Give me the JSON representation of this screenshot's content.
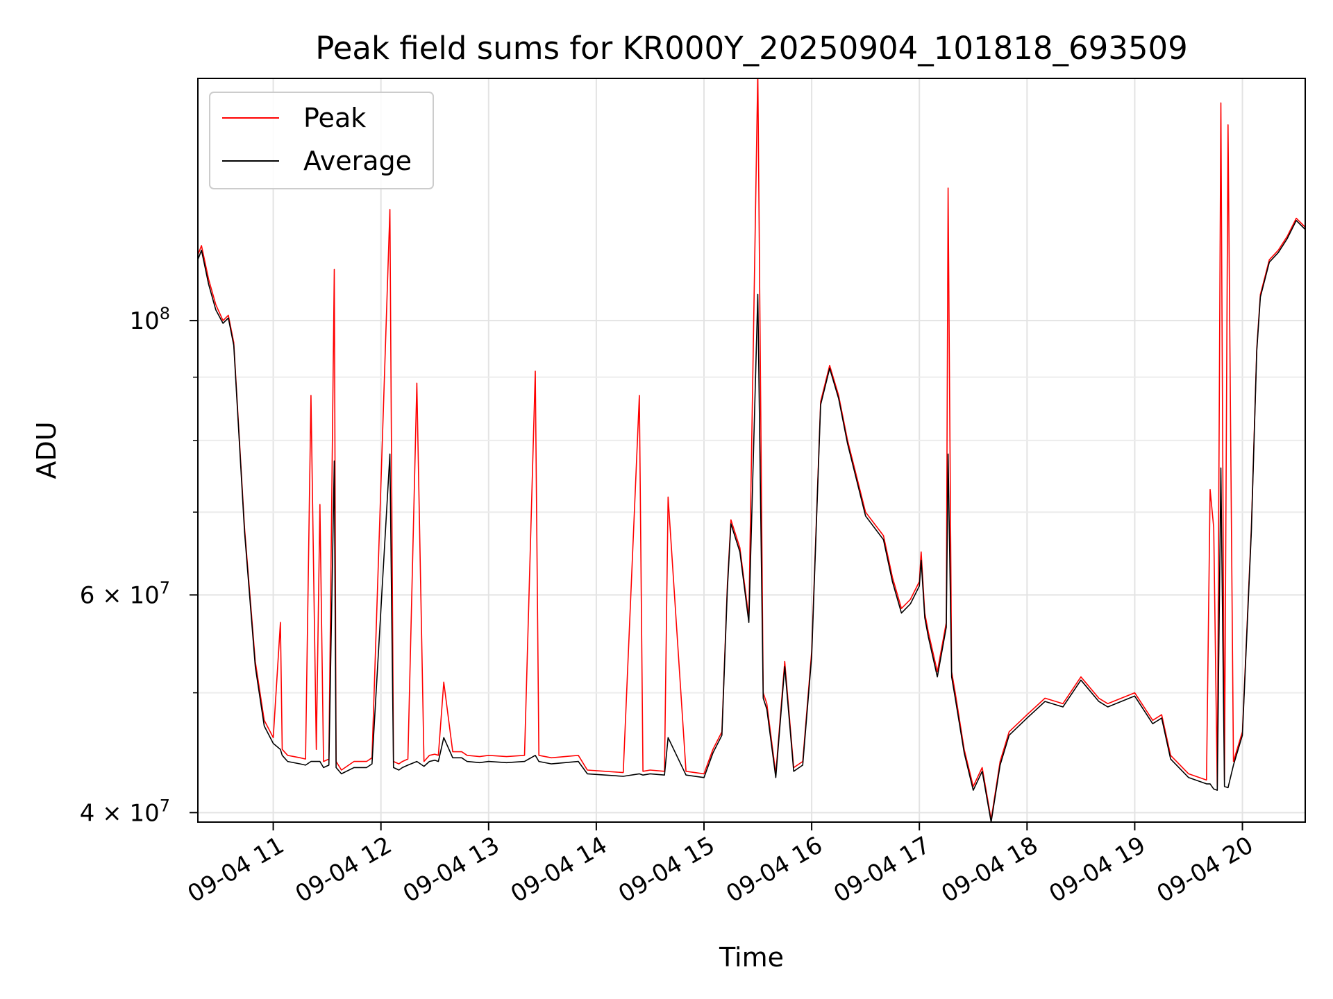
{
  "chart_data": {
    "type": "line",
    "title": "Peak field sums for KR000Y_20250904_101818_693509",
    "xlabel": "Time",
    "ylabel": "ADU",
    "yscale": "log",
    "xlim": [
      "2025-09-04 10:18",
      "2025-09-04 20:35"
    ],
    "ylim": [
      39300000,
      157000000
    ],
    "x_ticks": [
      "09-04 11",
      "09-04 12",
      "09-04 13",
      "09-04 14",
      "09-04 15",
      "09-04 16",
      "09-04 17",
      "09-04 18",
      "09-04 19",
      "09-04 20"
    ],
    "y_ticks": [
      {
        "value": 40000000,
        "label": "4 × 10",
        "exp": "7"
      },
      {
        "value": 60000000,
        "label": "6 × 10",
        "exp": "7"
      },
      {
        "value": 100000000,
        "label": "10",
        "exp": "8"
      }
    ],
    "grid": true,
    "legend_position": "top-left",
    "series": [
      {
        "name": "Peak",
        "color": "#ff0000",
        "x": [
          "10:18",
          "10:20",
          "10:24",
          "10:28",
          "10:32",
          "10:35",
          "10:38",
          "10:44",
          "10:50",
          "10:55",
          "11:00",
          "11:04",
          "11:05",
          "11:08",
          "11:15",
          "11:18",
          "11:21",
          "11:24",
          "11:26",
          "11:28",
          "11:31",
          "11:34",
          "11:35",
          "11:38",
          "11:45",
          "11:52",
          "11:55",
          "12:05",
          "12:07",
          "12:10",
          "12:12",
          "12:15",
          "12:20",
          "12:24",
          "12:27",
          "12:30",
          "12:32",
          "12:35",
          "12:40",
          "12:45",
          "12:48",
          "12:55",
          "13:00",
          "13:10",
          "13:20",
          "13:26",
          "13:28",
          "13:35",
          "13:50",
          "13:55",
          "14:05",
          "14:15",
          "14:24",
          "14:26",
          "14:30",
          "14:38",
          "14:40",
          "14:50",
          "15:00",
          "15:05",
          "15:10",
          "15:13",
          "15:15",
          "15:20",
          "15:25",
          "15:30",
          "15:33",
          "15:35",
          "15:40",
          "15:45",
          "15:50",
          "15:55",
          "16:00",
          "16:05",
          "16:10",
          "16:15",
          "16:20",
          "16:30",
          "16:40",
          "16:45",
          "16:50",
          "16:55",
          "17:00",
          "17:01",
          "17:03",
          "17:05",
          "17:10",
          "17:15",
          "17:16",
          "17:18",
          "17:20",
          "17:25",
          "17:30",
          "17:35",
          "17:40",
          "17:45",
          "17:50",
          "18:00",
          "18:10",
          "18:20",
          "18:30",
          "18:40",
          "18:45",
          "19:00",
          "19:10",
          "19:15",
          "19:20",
          "19:30",
          "19:40",
          "19:42",
          "19:44",
          "19:46",
          "19:48",
          "19:50",
          "19:52",
          "19:55",
          "20:00",
          "20:05",
          "20:08",
          "20:10",
          "20:15",
          "20:20",
          "20:25",
          "20:30",
          "20:35"
        ],
        "y": [
          113000000,
          115000000,
          108000000,
          103000000,
          100000000,
          101000000,
          96000000,
          68000000,
          53000000,
          47500000,
          46000000,
          57000000,
          45000000,
          44500000,
          44300000,
          44200000,
          87000000,
          45000000,
          71000000,
          44000000,
          44200000,
          110000000,
          44000000,
          43300000,
          44000000,
          44000000,
          44300000,
          123000000,
          44000000,
          43800000,
          44000000,
          44200000,
          89000000,
          44000000,
          44500000,
          44600000,
          44500000,
          51000000,
          44800000,
          44800000,
          44500000,
          44400000,
          44500000,
          44400000,
          44500000,
          91000000,
          44500000,
          44300000,
          44500000,
          43300000,
          43200000,
          43100000,
          87000000,
          43200000,
          43300000,
          43200000,
          72000000,
          43200000,
          43000000,
          45000000,
          46500000,
          61000000,
          69000000,
          65500000,
          57500000,
          159000000,
          50000000,
          49000000,
          43000000,
          53000000,
          43500000,
          44000000,
          54000000,
          86000000,
          92000000,
          87000000,
          80000000,
          70000000,
          67000000,
          62000000,
          58500000,
          59500000,
          61500000,
          65000000,
          58000000,
          56000000,
          52000000,
          57000000,
          128000000,
          52000000,
          50000000,
          45000000,
          42000000,
          43500000,
          39500000,
          44000000,
          46500000,
          48000000,
          49500000,
          49000000,
          51500000,
          49500000,
          49000000,
          50000000,
          47500000,
          48000000,
          44500000,
          43000000,
          42500000,
          73000000,
          68000000,
          42000000,
          150000000,
          42500000,
          144000000,
          44000000,
          46500000,
          68000000,
          95000000,
          105000000,
          112000000,
          114000000,
          117000000,
          121000000,
          119000000
        ]
      },
      {
        "name": "Average",
        "color": "#000000",
        "x": [
          "10:18",
          "10:20",
          "10:24",
          "10:28",
          "10:32",
          "10:35",
          "10:38",
          "10:44",
          "10:50",
          "10:55",
          "11:00",
          "11:04",
          "11:05",
          "11:08",
          "11:15",
          "11:18",
          "11:21",
          "11:24",
          "11:26",
          "11:28",
          "11:31",
          "11:34",
          "11:35",
          "11:38",
          "11:45",
          "11:52",
          "11:55",
          "12:05",
          "12:07",
          "12:10",
          "12:12",
          "12:15",
          "12:20",
          "12:24",
          "12:27",
          "12:30",
          "12:32",
          "12:35",
          "12:40",
          "12:45",
          "12:48",
          "12:55",
          "13:00",
          "13:10",
          "13:20",
          "13:26",
          "13:28",
          "13:35",
          "13:50",
          "13:55",
          "14:05",
          "14:15",
          "14:24",
          "14:26",
          "14:30",
          "14:38",
          "14:40",
          "14:50",
          "15:00",
          "15:05",
          "15:10",
          "15:13",
          "15:15",
          "15:20",
          "15:25",
          "15:30",
          "15:33",
          "15:35",
          "15:40",
          "15:45",
          "15:50",
          "15:55",
          "16:00",
          "16:05",
          "16:10",
          "16:15",
          "16:20",
          "16:30",
          "16:40",
          "16:45",
          "16:50",
          "16:55",
          "17:00",
          "17:01",
          "17:03",
          "17:05",
          "17:10",
          "17:15",
          "17:16",
          "17:18",
          "17:20",
          "17:25",
          "17:30",
          "17:35",
          "17:40",
          "17:45",
          "17:50",
          "18:00",
          "18:10",
          "18:20",
          "18:30",
          "18:40",
          "18:45",
          "19:00",
          "19:10",
          "19:15",
          "19:20",
          "19:30",
          "19:40",
          "19:42",
          "19:44",
          "19:46",
          "19:48",
          "19:50",
          "19:52",
          "19:55",
          "20:00",
          "20:05",
          "20:08",
          "20:10",
          "20:15",
          "20:20",
          "20:25",
          "20:30",
          "20:35"
        ],
        "y": [
          112000000,
          114000000,
          107000000,
          102000000,
          99500000,
          100500000,
          95500000,
          67500000,
          52500000,
          47000000,
          45500000,
          45000000,
          44500000,
          44000000,
          43800000,
          43700000,
          44000000,
          44000000,
          44000000,
          43500000,
          43700000,
          77000000,
          43500000,
          43000000,
          43500000,
          43500000,
          43800000,
          78000000,
          43500000,
          43300000,
          43500000,
          43700000,
          44000000,
          43600000,
          44000000,
          44100000,
          44000000,
          46000000,
          44300000,
          44300000,
          44000000,
          43900000,
          44000000,
          43900000,
          44000000,
          44500000,
          44000000,
          43800000,
          44000000,
          43000000,
          42900000,
          42800000,
          43000000,
          42900000,
          43000000,
          42900000,
          46000000,
          42900000,
          42700000,
          44700000,
          46200000,
          60500000,
          68500000,
          65000000,
          57000000,
          105000000,
          49500000,
          48500000,
          42700000,
          52500000,
          43200000,
          43700000,
          53500000,
          85500000,
          91500000,
          86500000,
          79500000,
          69500000,
          66500000,
          61500000,
          58000000,
          59000000,
          61000000,
          64000000,
          57500000,
          55500000,
          51500000,
          56500000,
          78000000,
          51500000,
          49500000,
          44700000,
          41700000,
          43200000,
          39300000,
          43700000,
          46200000,
          47700000,
          49200000,
          48700000,
          51200000,
          49200000,
          48700000,
          49700000,
          47200000,
          47700000,
          44200000,
          42700000,
          42200000,
          42200000,
          41800000,
          41700000,
          76000000,
          42000000,
          41900000,
          43700000,
          46200000,
          67500000,
          94500000,
          104500000,
          111500000,
          113500000,
          116500000,
          120500000,
          118500000
        ]
      }
    ]
  }
}
